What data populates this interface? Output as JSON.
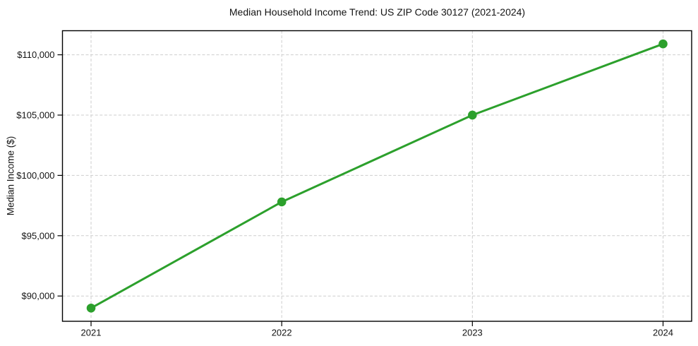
{
  "chart_data": {
    "type": "line",
    "title": "Median Household Income Trend: US ZIP Code 30127 (2021-2024)",
    "xlabel": "",
    "ylabel": "Median Income ($)",
    "x": [
      2021,
      2022,
      2023,
      2024
    ],
    "series": [
      {
        "name": "Median Household Income",
        "values": [
          89000,
          97800,
          105000,
          110900
        ]
      }
    ],
    "x_tick_labels": [
      "2021",
      "2022",
      "2023",
      "2024"
    ],
    "y_ticks": [
      90000,
      95000,
      100000,
      105000,
      110000
    ],
    "y_tick_labels": [
      "$90,000",
      "$95,000",
      "$100,000",
      "$105,000",
      "$110,000"
    ],
    "xlim": [
      2020.85,
      2024.15
    ],
    "ylim": [
      87905,
      111995
    ],
    "grid": true,
    "grid_style": "dashed",
    "legend": false,
    "line_color": "#2ca02c",
    "marker": "circle",
    "grid_color": "#cdcdcd",
    "spine_color": "#000000",
    "background_color": "#ffffff"
  }
}
